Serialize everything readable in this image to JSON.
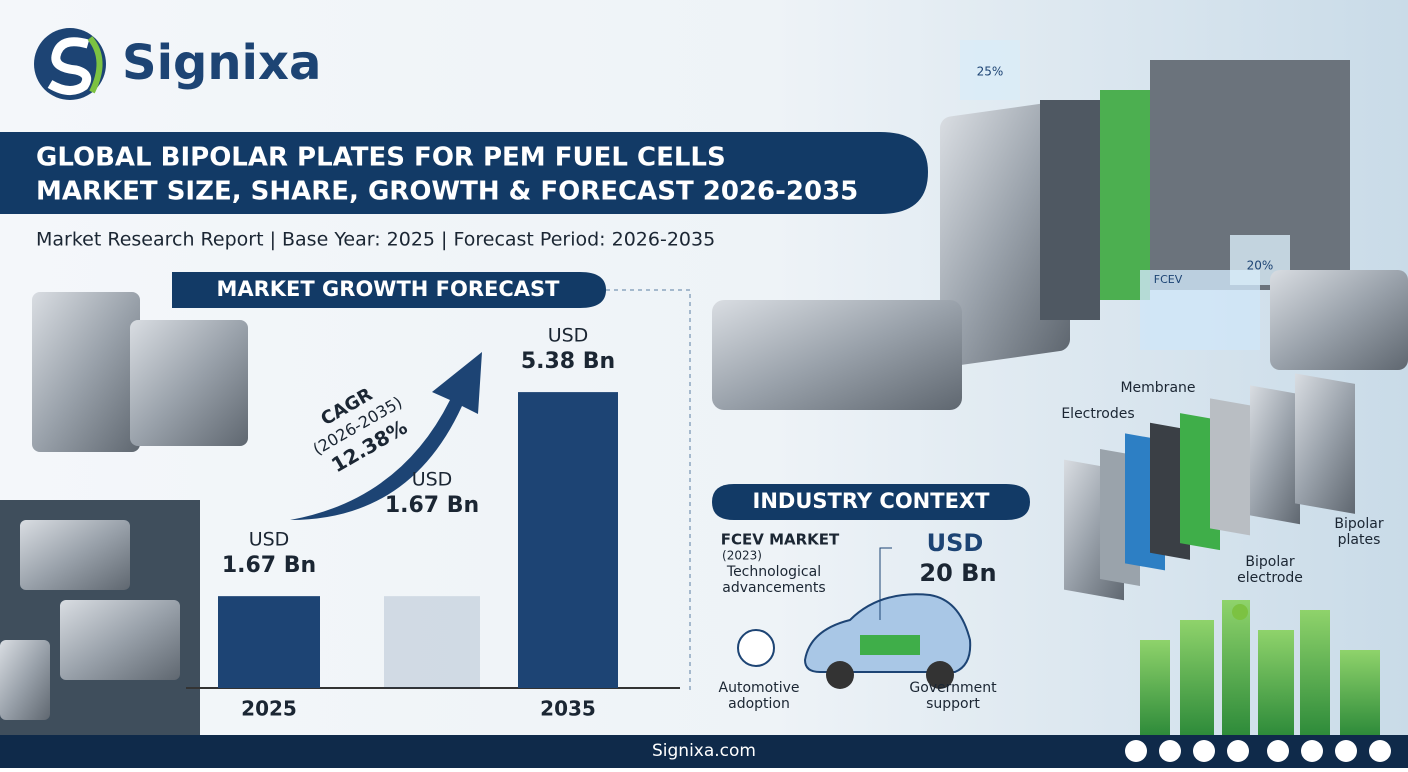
{
  "header": {
    "brand": "Signixa",
    "title_line1": "GLOBAL BIPOLAR PLATES FOR PEM FUEL CELLS",
    "title_line2": "MARKET SIZE, SHARE, GROWTH & FORECAST 2026-2035",
    "subtitle": "Market Research Report | Base Year: 2025 | Forecast Period: 2026-2035"
  },
  "chart_data": {
    "type": "bar",
    "title": "MARKET GROWTH FORECAST",
    "categories": [
      "2025",
      null,
      "2035"
    ],
    "values": [
      1.67,
      1.67,
      5.38
    ],
    "value_labels": [
      "1.67 Bn",
      "1.67 Bn",
      "5.38 Bn"
    ],
    "currency": "USD",
    "color": "#1d4474",
    "annotation": {
      "label": "CAGR",
      "period": "(2026-2035)",
      "rate": "12.38%"
    }
  },
  "screens": {
    "a": "25%",
    "b": "20%",
    "c": "FCEV"
  },
  "diagram": {
    "membrane": "Membrane",
    "electrodes": "Electrodes",
    "bipolar_electrode": "Bipolar electrode",
    "bipolar_plates": "Bipolar plates"
  },
  "industry_context": {
    "title": "INDUSTRY CONTEXT",
    "market": "FCEV MARKET",
    "year": "(2023)",
    "driver1": "Technological advancements",
    "currency": "USD",
    "value": "20 Bn",
    "driver2": "Automotive adoption",
    "driver3": "Government support"
  },
  "footer": {
    "site": "Signixa.com"
  }
}
